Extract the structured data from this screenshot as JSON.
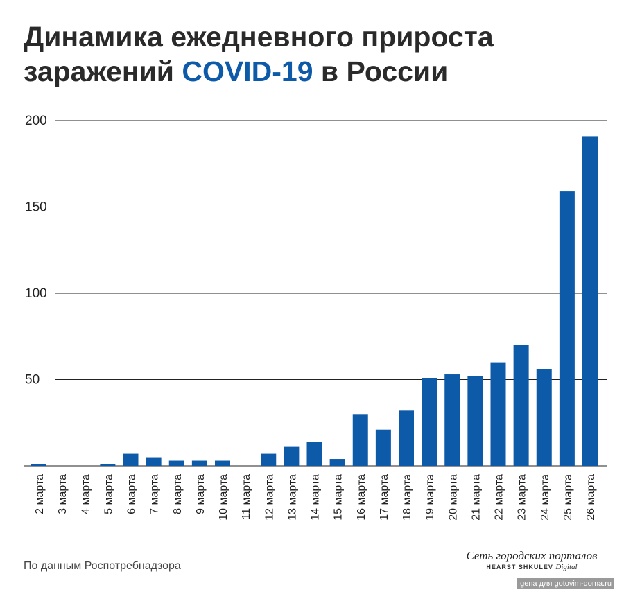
{
  "title": {
    "line1": "Динамика ежедневного прироста",
    "line2_before": "заражений ",
    "line2_accent": "COVID-19",
    "line2_after": " в России"
  },
  "source": "По данным Роспотребнадзора",
  "logo": {
    "main": "Сеть городских порталов",
    "sub": "HEARST SHKULEV",
    "sub_script": "Digital"
  },
  "watermark": "gena для gotovim-doma.ru",
  "colors": {
    "bar": "#0d5aa8",
    "accent": "#0d5aa8",
    "grid": "#222222"
  },
  "chart_data": {
    "type": "bar",
    "categories": [
      "2 марта",
      "3 марта",
      "4 марта",
      "5 марта",
      "6 марта",
      "7 марта",
      "8 марта",
      "9 марта",
      "10 марта",
      "11 марта",
      "12 марта",
      "13 марта",
      "14 марта",
      "15 марта",
      "16 марта",
      "17 марта",
      "18 марта",
      "19 марта",
      "20 марта",
      "21 марта",
      "22 марта",
      "23 марта",
      "24 марта",
      "25 марта",
      "26 марта"
    ],
    "values": [
      1,
      0,
      0,
      1,
      7,
      5,
      3,
      3,
      3,
      0,
      7,
      11,
      14,
      4,
      30,
      21,
      32,
      51,
      53,
      52,
      60,
      70,
      56,
      159,
      191
    ],
    "yticks": [
      50,
      100,
      150,
      200
    ],
    "ylim": [
      0,
      200
    ],
    "grid": true
  }
}
